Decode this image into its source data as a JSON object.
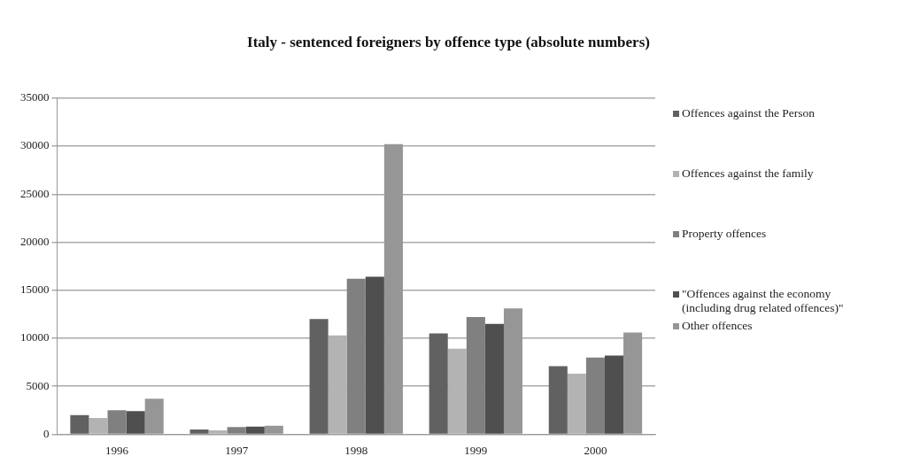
{
  "chart_data": {
    "type": "bar",
    "title": "Italy - sentenced foreigners by offence type (absolute numbers)",
    "categories": [
      "1996",
      "1997",
      "1998",
      "1999",
      "2000"
    ],
    "series": [
      {
        "name": "Offences against the Person",
        "color": "#616161",
        "values": [
          2000,
          500,
          12000,
          10500,
          7100
        ]
      },
      {
        "name": "Offences against the family",
        "color": "#b3b3b3",
        "values": [
          1700,
          400,
          10300,
          8900,
          6300
        ]
      },
      {
        "name": "Property offences",
        "color": "#808080",
        "values": [
          2500,
          750,
          16200,
          12200,
          8000
        ]
      },
      {
        "name": "\"Offences against the economy (including drug related offences)\"",
        "color": "#4f4f4f",
        "values": [
          2400,
          800,
          16400,
          11500,
          8200
        ]
      },
      {
        "name": "Other offences",
        "color": "#969696",
        "values": [
          3700,
          900,
          30200,
          13100,
          10600
        ]
      }
    ],
    "ylim": [
      0,
      35000
    ],
    "yticks": [
      0,
      5000,
      10000,
      15000,
      20000,
      25000,
      30000,
      35000
    ],
    "grid": "y",
    "legend": "right"
  }
}
